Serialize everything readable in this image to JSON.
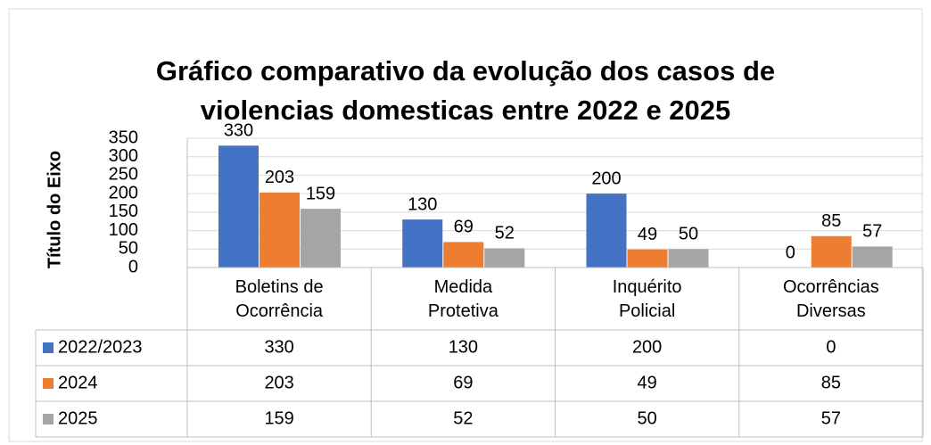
{
  "chart_data": {
    "type": "bar",
    "title": "Gráfico comparativo da evolução dos casos de violencias domesticas entre 2022 e 2025",
    "y_label": "Título do Eixo",
    "categories": [
      "Boletins de Ocorrência",
      "Medida Protetiva",
      "Inquérito Policial",
      "Ocorrências Diversas"
    ],
    "series": [
      {
        "name": "2022/2023",
        "color": "#4472c4",
        "values": [
          330,
          130,
          200,
          0
        ]
      },
      {
        "name": "2024",
        "color": "#ed7d31",
        "values": [
          203,
          69,
          49,
          85
        ]
      },
      {
        "name": "2025",
        "color": "#a5a5a5",
        "values": [
          159,
          52,
          50,
          57
        ]
      }
    ],
    "ylim": [
      0,
      350
    ],
    "yticks": [
      0,
      50,
      100,
      150,
      200,
      250,
      300,
      350
    ],
    "grid": true,
    "data_table": true
  }
}
